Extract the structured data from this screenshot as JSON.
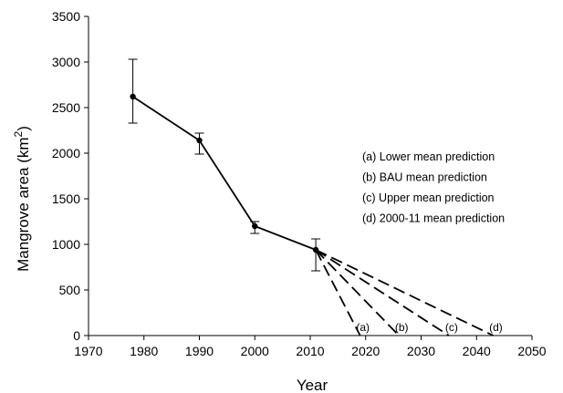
{
  "chart_data": {
    "type": "line",
    "title": "",
    "xlabel": "Year",
    "ylabel_prefix": "Mangrove area (km",
    "ylabel_sup": "2",
    "ylabel_suffix": ")",
    "xlim": [
      1970,
      2050
    ],
    "ylim": [
      0,
      3500
    ],
    "xticks": [
      "1970",
      "1980",
      "1990",
      "2000",
      "2010",
      "2020",
      "2030",
      "2040",
      "2050"
    ],
    "yticks": [
      "0",
      "500",
      "1000",
      "1500",
      "2000",
      "2500",
      "3000",
      "3500"
    ],
    "grid": false,
    "legend_position": "right",
    "series": [
      {
        "x": [
          1978,
          1990,
          2000,
          2011
        ],
        "y": [
          2620,
          2140,
          1200,
          940
        ],
        "error_low": [
          2330,
          1990,
          1120,
          710
        ],
        "error_high": [
          3030,
          2220,
          1250,
          1060
        ]
      }
    ],
    "projections": [
      {
        "label": "(a)",
        "legend": "(a) Lower mean prediction",
        "x": [
          2011,
          2019
        ],
        "y": [
          940,
          0
        ]
      },
      {
        "label": "(b)",
        "legend": "(b) BAU mean prediction",
        "x": [
          2011,
          2026
        ],
        "y": [
          940,
          0
        ]
      },
      {
        "label": "(c)",
        "legend": "(c) Upper mean prediction",
        "x": [
          2011,
          2035
        ],
        "y": [
          940,
          0
        ]
      },
      {
        "label": "(d)",
        "legend": "(d) 2000-11 mean prediction",
        "x": [
          2011,
          2043
        ],
        "y": [
          940,
          0
        ]
      }
    ]
  }
}
